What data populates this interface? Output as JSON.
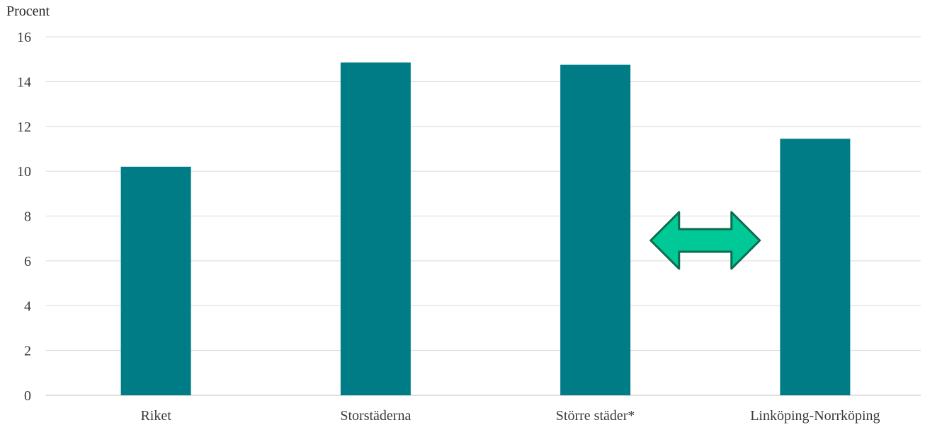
{
  "chart_data": {
    "type": "bar",
    "ylabel": "Procent",
    "xlabel": "",
    "title": "",
    "categories": [
      "Riket",
      "Storstäderna",
      "Större städer*",
      "Linköping-Norrköping"
    ],
    "values": [
      10.2,
      14.85,
      14.75,
      11.45
    ],
    "ylim": [
      0,
      16
    ],
    "yticks": [
      0,
      2,
      4,
      6,
      8,
      10,
      12,
      14,
      16
    ],
    "grid": true,
    "legend": "none"
  },
  "colors": {
    "bar": "#007C87",
    "grid": "#d9d9d9",
    "axis": "#bfbfbf",
    "arrow_fill": "#00C896",
    "arrow_stroke": "#0E6B4E"
  },
  "annotation": {
    "icon": "double-arrow-icon",
    "between": [
      "Större städer*",
      "Linköping-Norrköping"
    ]
  }
}
